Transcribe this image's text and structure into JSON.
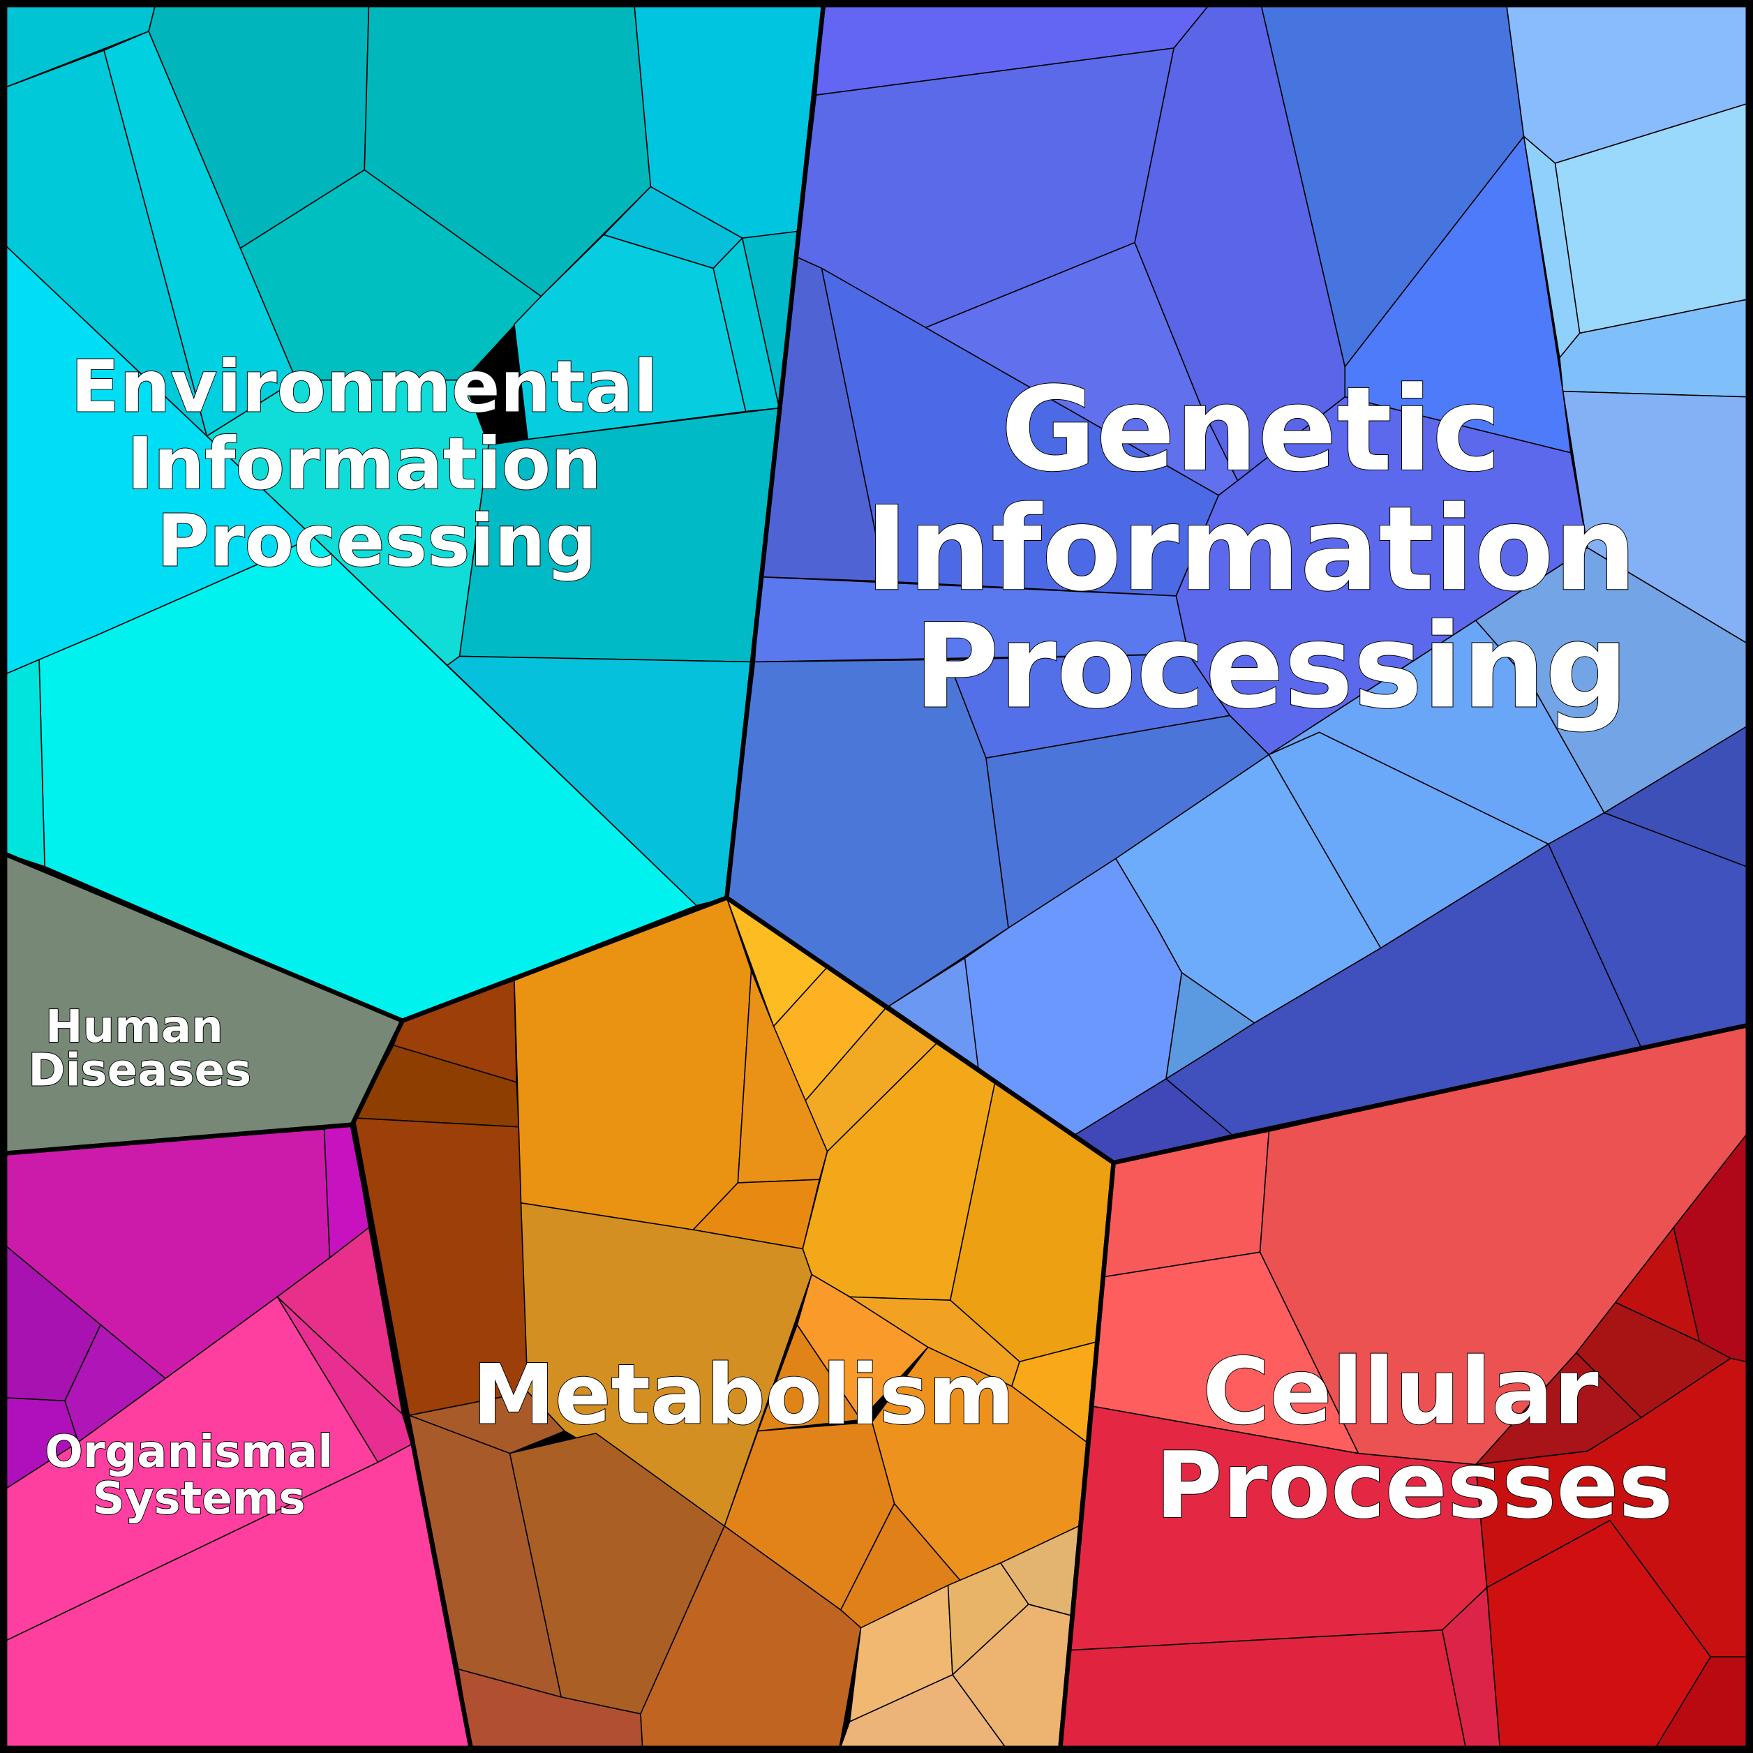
{
  "regions": {
    "environmental": {
      "label_lines": [
        "Environmental",
        "Information",
        "Processing"
      ],
      "color": "#00c4d4"
    },
    "genetic": {
      "label_lines": [
        "Genetic",
        "Information",
        "Processing"
      ],
      "color": "#5a6ae8"
    },
    "human": {
      "label_lines": [
        "Human",
        "Diseases"
      ],
      "color": "#778877"
    },
    "organismal": {
      "label_lines": [
        "Organismal",
        "Systems"
      ],
      "color": "#ff3fa0"
    },
    "metabolism": {
      "label_lines": [
        "Metabolism"
      ],
      "color": "#ea9212"
    },
    "cellular": {
      "label_lines": [
        "Cellular",
        "Processes"
      ],
      "color": "#ec5252"
    }
  }
}
